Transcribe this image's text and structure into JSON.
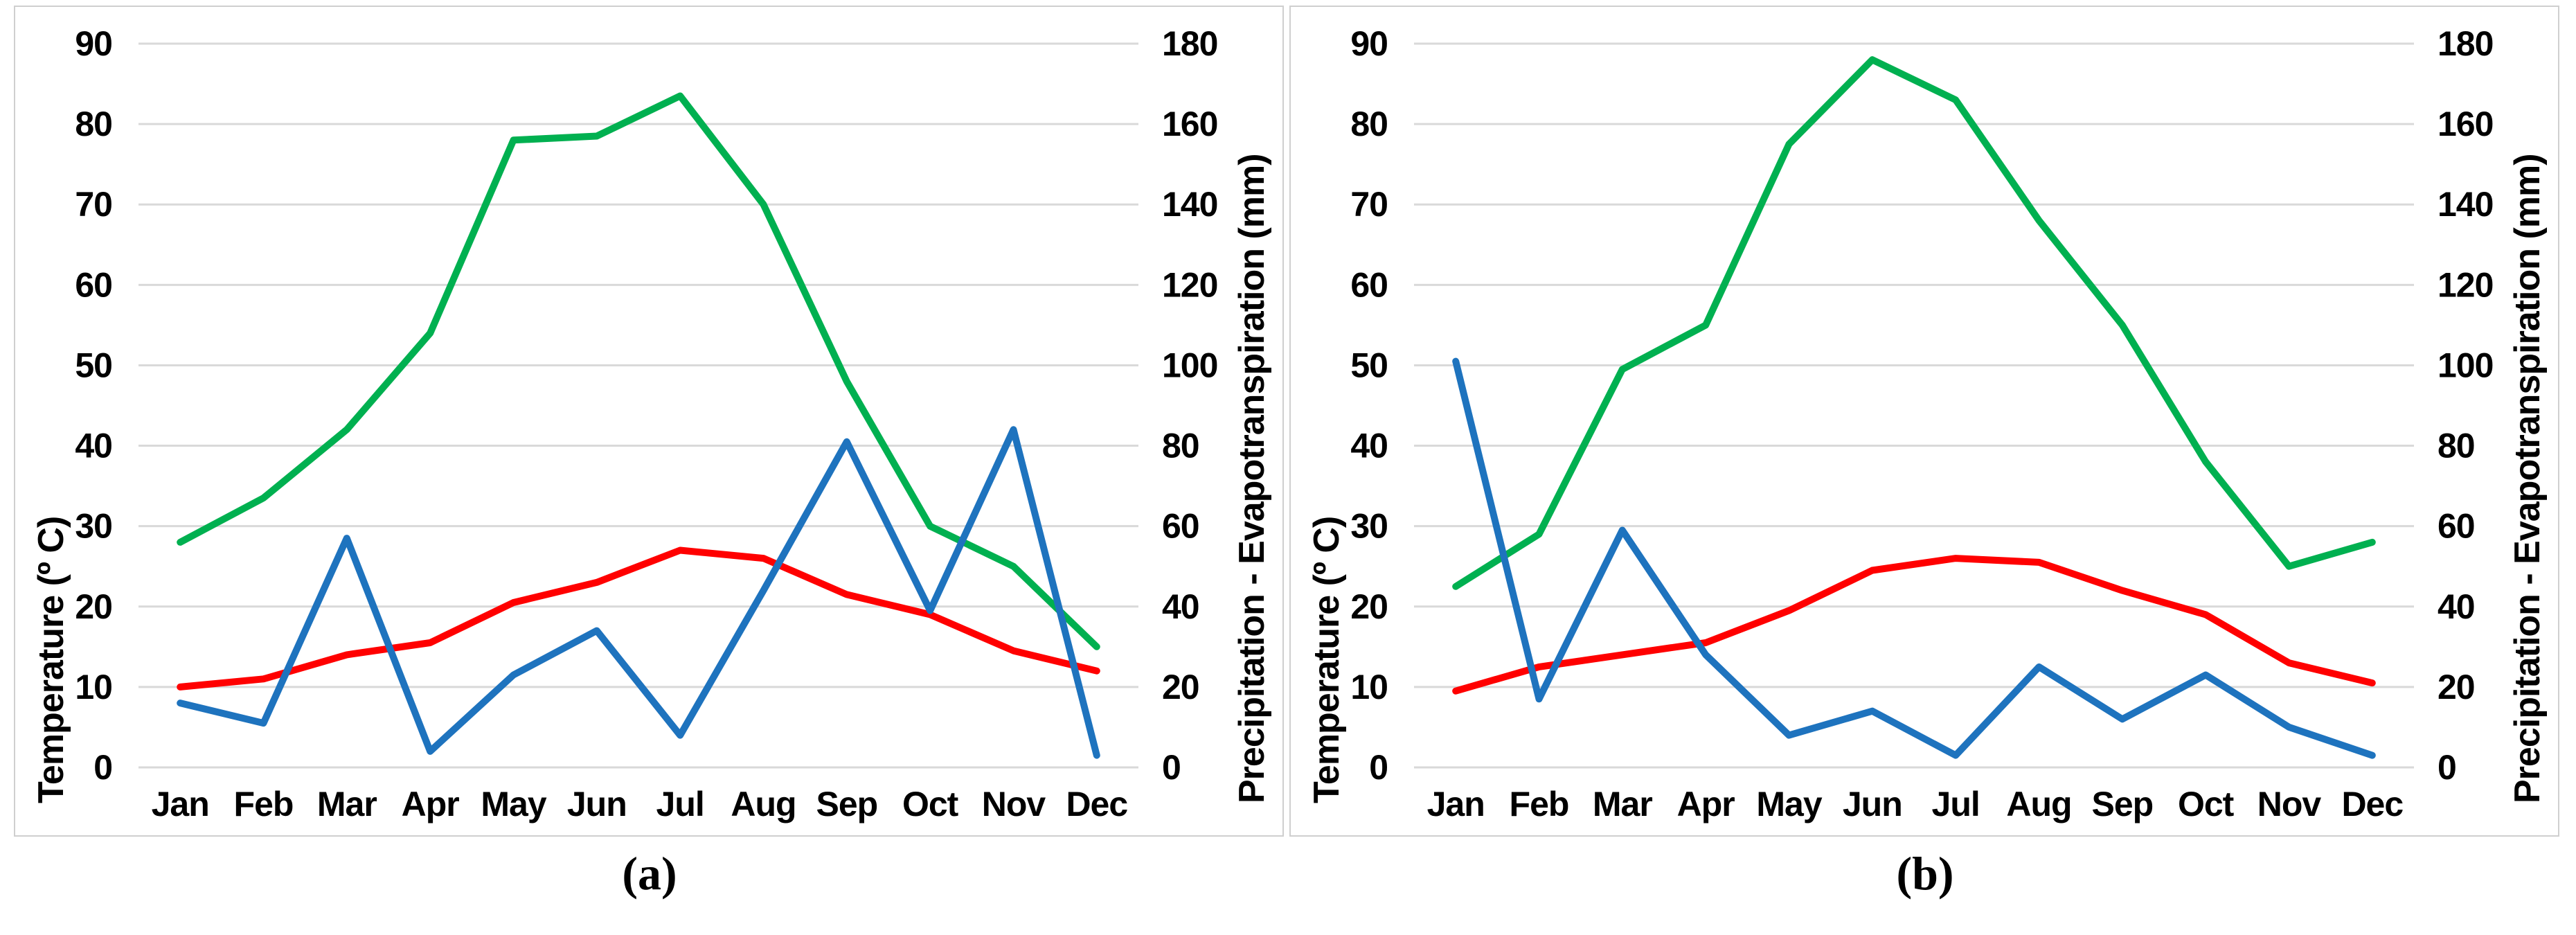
{
  "figure": {
    "captions": [
      "(a)",
      "(b)"
    ],
    "axes": {
      "left_title": "Temperature (º C)",
      "right_title": "Precipitation - Evapotranspiration (mm)",
      "left_ticks": [
        "90",
        "80",
        "70",
        "60",
        "50",
        "40",
        "30",
        "20",
        "10",
        "0"
      ],
      "right_ticks": [
        "180",
        "160",
        "140",
        "120",
        "100",
        "80",
        "60",
        "40",
        "20",
        "0"
      ]
    },
    "colors": {
      "temperature": "#FF0000",
      "precipitation": "#1E73BE",
      "evapotranspiration": "#00B050",
      "gridline": "#D9D9D9",
      "panel_border": "#CFCFCF",
      "text": "#000000",
      "background": "#FFFFFF"
    }
  },
  "chart_data": [
    {
      "id": "a",
      "type": "line",
      "title": "",
      "categories": [
        "Jan",
        "Feb",
        "Mar",
        "Apr",
        "May",
        "Jun",
        "Jul",
        "Aug",
        "Sep",
        "Oct",
        "Nov",
        "Dec"
      ],
      "left_axis": {
        "label": "Temperature (º C)",
        "range": [
          0,
          90
        ],
        "tick_step": 10
      },
      "right_axis": {
        "label": "Precipitation - Evapotranspiration (mm)",
        "range": [
          0,
          180
        ],
        "tick_step": 20
      },
      "grid": "horizontal",
      "legend": "none",
      "series": [
        {
          "name": "Temperature",
          "axis": "left",
          "unit": "ºC",
          "color": "#FF0000",
          "z": 1,
          "values": [
            10,
            11,
            14,
            15.5,
            20.5,
            23,
            27,
            26,
            21.5,
            19,
            14.5,
            12
          ]
        },
        {
          "name": "Precipitation",
          "axis": "right",
          "unit": "mm",
          "color": "#1E73BE",
          "z": 2,
          "values": [
            16,
            11,
            57,
            4,
            23,
            34,
            8,
            44,
            81,
            39,
            84,
            3
          ]
        },
        {
          "name": "Evapotranspiration",
          "axis": "right",
          "unit": "mm",
          "color": "#00B050",
          "z": 0,
          "values": [
            56,
            67,
            84,
            108,
            156,
            157,
            167,
            140,
            96,
            60,
            50,
            30
          ]
        }
      ]
    },
    {
      "id": "b",
      "type": "line",
      "title": "",
      "categories": [
        "Jan",
        "Feb",
        "Mar",
        "Apr",
        "May",
        "Jun",
        "Jul",
        "Aug",
        "Sep",
        "Oct",
        "Nov",
        "Dec"
      ],
      "left_axis": {
        "label": "Temperature (º C)",
        "range": [
          0,
          90
        ],
        "tick_step": 10
      },
      "right_axis": {
        "label": "Precipitation - Evapotranspiration (mm)",
        "range": [
          0,
          180
        ],
        "tick_step": 20
      },
      "grid": "horizontal",
      "legend": "none",
      "series": [
        {
          "name": "Temperature",
          "axis": "left",
          "unit": "ºC",
          "color": "#FF0000",
          "z": 1,
          "values": [
            9.5,
            12.5,
            14,
            15.5,
            19.5,
            24.5,
            26,
            25.5,
            22,
            19,
            13,
            10.5
          ]
        },
        {
          "name": "Precipitation",
          "axis": "right",
          "unit": "mm",
          "color": "#1E73BE",
          "z": 2,
          "values": [
            101,
            17,
            59,
            28,
            8,
            14,
            3,
            25,
            12,
            23,
            10,
            3
          ]
        },
        {
          "name": "Evapotranspiration",
          "axis": "right",
          "unit": "mm",
          "color": "#00B050",
          "z": 0,
          "values": [
            45,
            58,
            99,
            110,
            155,
            176,
            166,
            136,
            110,
            76,
            50,
            56
          ]
        }
      ]
    }
  ]
}
